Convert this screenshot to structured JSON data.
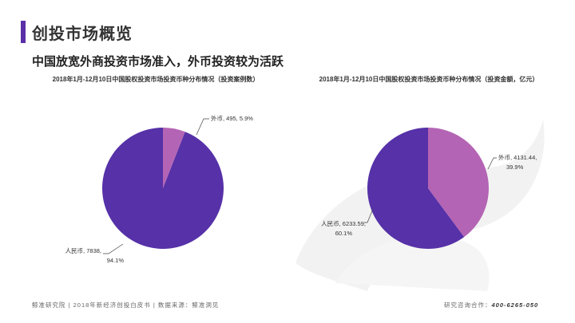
{
  "page": {
    "title": "创投市场概览",
    "subtitle": "中国放宽外商投资市场准入，外币投资较为活跃"
  },
  "colors": {
    "accent": "#5b2fa8",
    "rmb_slice": "#5631a8",
    "foreign_slice": "#b464b4",
    "watermark": "#f2f2f2"
  },
  "chart_data": [
    {
      "type": "pie",
      "title": "2018年1月-12月10日中国股权投资市场投资币种分布情况（投资案例数）",
      "slices": [
        {
          "label": "外币",
          "value": 495,
          "percent": "5.9%",
          "text": "外币, 495, 5.9%"
        },
        {
          "label": "人民币",
          "value": 7838,
          "percent": "94.1%",
          "text_line1": "人民币, 7838,",
          "text_line2": "94.1%"
        }
      ]
    },
    {
      "type": "pie",
      "title": "2018年1月-12月10日中国股权投资市场投资币种分布情况（投资金额，亿元）",
      "slices": [
        {
          "label": "外币",
          "value": 4131.44,
          "percent": "39.9%",
          "text_line1": "外币, 4131.44,",
          "text_line2": "39.9%"
        },
        {
          "label": "人民币",
          "value": 6233.59,
          "percent": "60.1%",
          "text_line1": "人民币, 6233.59,",
          "text_line2": "60.1%"
        }
      ]
    }
  ],
  "footer": {
    "left": "鲸准研究院 | 2018年新经济创投白皮书 | 数据来源：鲸准洞见",
    "right_label": "研究咨询合作：",
    "phone": "400-6265-050"
  }
}
